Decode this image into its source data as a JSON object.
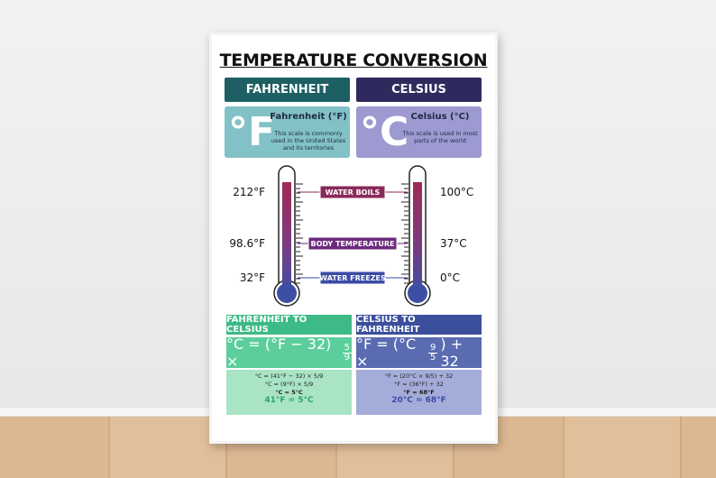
{
  "title": "TEMPERATURE CONVERSION",
  "fahrenheit": {
    "header": "FAHRENHEIT",
    "symbol": "°F",
    "name": "Fahrenheit (°F)",
    "description": "This scale is commonly used in the United States and its territories"
  },
  "celsius": {
    "header": "CELSIUS",
    "symbol": "°C",
    "name": "Celsius (°C)",
    "description": "This scale is used in most parts of the world"
  },
  "thermometer": {
    "fahrenheit_labels": [
      "212°F",
      "98.6°F",
      "32°F"
    ],
    "celsius_labels": [
      "100°C",
      "37°C",
      "0°C"
    ],
    "markers": [
      "WATER BOILS",
      "BODY TEMPERATURE",
      "WATER FREEZES"
    ]
  },
  "f_to_c": {
    "header": "FAHRENHEIT TO CELSIUS",
    "formula": "°C = (°F − 32) ×",
    "numerator": "5",
    "denominator": "9",
    "steps": [
      "°C = (41°F − 32) × 5/9",
      "°C = (9°F) × 5/9",
      "°C = 5°C"
    ],
    "result": "41°F = 5°C"
  },
  "c_to_f": {
    "header": "CELSIUS TO FAHRENHEIT",
    "formula": "°F = (°C ×",
    "numerator": "9",
    "denominator": "5",
    "formula_end": ") + 32",
    "steps": [
      "°F = (20°C × 9/5) + 32",
      "°F = (36°F) + 32",
      "°F = 68°F"
    ],
    "result": "20°C = 68°F"
  }
}
